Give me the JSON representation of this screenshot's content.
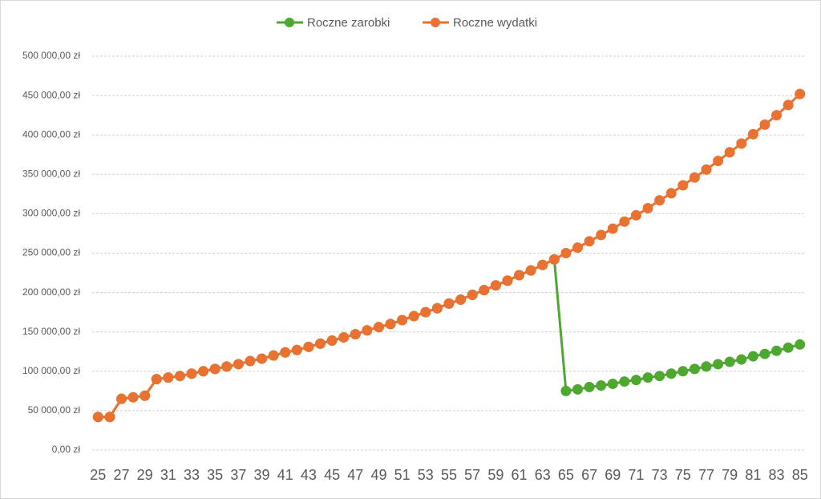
{
  "chart_data": {
    "type": "line",
    "x": [
      25,
      26,
      27,
      28,
      29,
      30,
      31,
      32,
      33,
      34,
      35,
      36,
      37,
      38,
      39,
      40,
      41,
      42,
      43,
      44,
      45,
      46,
      47,
      48,
      49,
      50,
      51,
      52,
      53,
      54,
      55,
      56,
      57,
      58,
      59,
      60,
      61,
      62,
      63,
      64,
      65,
      66,
      67,
      68,
      69,
      70,
      71,
      72,
      73,
      74,
      75,
      76,
      77,
      78,
      79,
      80,
      81,
      82,
      83,
      84,
      85
    ],
    "series": [
      {
        "name": "Roczne zarobki",
        "color": "#4ea72e",
        "values": [
          42000,
          42000,
          65000,
          67000,
          69000,
          90000,
          92000,
          94000,
          97000,
          100000,
          103000,
          106000,
          109000,
          113000,
          116000,
          120000,
          124000,
          127000,
          131000,
          135000,
          139000,
          143000,
          147000,
          152000,
          156000,
          160000,
          165000,
          170000,
          175000,
          180000,
          186000,
          191000,
          197000,
          203000,
          209000,
          215000,
          222000,
          228000,
          235000,
          242000,
          75000,
          77000,
          80000,
          82000,
          84000,
          87000,
          89000,
          92000,
          94000,
          97000,
          100000,
          103000,
          106000,
          109000,
          112000,
          115000,
          119000,
          122000,
          126000,
          130000,
          134000
        ]
      },
      {
        "name": "Roczne wydatki",
        "color": "#e97132",
        "values": [
          42000,
          42000,
          65000,
          67000,
          69000,
          90000,
          92000,
          94000,
          97000,
          100000,
          103000,
          106000,
          109000,
          113000,
          116000,
          120000,
          124000,
          127000,
          131000,
          135000,
          139000,
          143000,
          147000,
          152000,
          156000,
          160000,
          165000,
          170000,
          175000,
          180000,
          186000,
          191000,
          197000,
          203000,
          209000,
          215000,
          222000,
          228000,
          235000,
          242000,
          250000,
          257000,
          265000,
          273000,
          281000,
          290000,
          298000,
          307000,
          317000,
          326000,
          336000,
          346000,
          356000,
          367000,
          378000,
          389000,
          401000,
          413000,
          425000,
          438000,
          452000
        ]
      }
    ],
    "xlim": [
      24.5,
      85.5
    ],
    "xticks": [
      25,
      27,
      29,
      31,
      33,
      35,
      37,
      39,
      41,
      43,
      45,
      47,
      49,
      51,
      53,
      55,
      57,
      59,
      61,
      63,
      65,
      67,
      69,
      71,
      73,
      75,
      77,
      79,
      81,
      83,
      85
    ],
    "ylim": [
      0,
      500000
    ],
    "yticks": [
      {
        "value": 0,
        "label": "0,00 zł"
      },
      {
        "value": 50000,
        "label": "50 000,00 zł"
      },
      {
        "value": 100000,
        "label": "100 000,00 zł"
      },
      {
        "value": 150000,
        "label": "150 000,00 zł"
      },
      {
        "value": 200000,
        "label": "200 000,00 zł"
      },
      {
        "value": 250000,
        "label": "250 000,00 zł"
      },
      {
        "value": 300000,
        "label": "300 000,00 zł"
      },
      {
        "value": 350000,
        "label": "350 000,00 zł"
      },
      {
        "value": 400000,
        "label": "400 000,00 zł"
      },
      {
        "value": 450000,
        "label": "450 000,00 zł"
      },
      {
        "value": 500000,
        "label": "500 000,00 zł"
      }
    ],
    "grid": true,
    "legend": "top"
  }
}
